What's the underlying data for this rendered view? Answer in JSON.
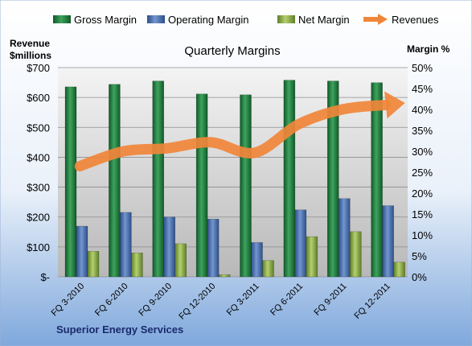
{
  "chart_data": {
    "type": "bar",
    "title": "Quarterly Margins",
    "company": "Superior Energy Services",
    "left_axis_label_line1": "Revenue",
    "left_axis_label_line2": "$millions",
    "right_axis_label": "Margin %",
    "categories": [
      "FQ 3-2010",
      "FQ 6-2010",
      "FQ 9-2010",
      "FQ 12-2010",
      "FQ 3-2011",
      "FQ 6-2011",
      "FQ 9-2011",
      "FQ 12-2011"
    ],
    "series": [
      {
        "name": "Gross Margin",
        "axis": "right",
        "color": "#1E7B3B",
        "values": [
          45.4,
          46.0,
          46.8,
          43.7,
          43.5,
          47.0,
          46.8,
          46.4
        ]
      },
      {
        "name": "Operating Margin",
        "axis": "right",
        "color": "#4A72B4",
        "values": [
          12.1,
          15.4,
          14.3,
          13.8,
          8.2,
          16.0,
          18.7,
          17.0
        ]
      },
      {
        "name": "Net Margin",
        "axis": "right",
        "color": "#8DB04A",
        "values": [
          6.1,
          5.7,
          7.9,
          0.5,
          3.9,
          9.6,
          10.8,
          3.5
        ]
      },
      {
        "name": "Revenues",
        "axis": "left",
        "color": "#F0863A",
        "values": [
          370,
          420,
          430,
          450,
          415,
          510,
          560,
          575
        ]
      }
    ],
    "left_axis": {
      "min": 0,
      "max": 700,
      "step": 100,
      "tick_labels": [
        "$-",
        "$100",
        "$200",
        "$300",
        "$400",
        "$500",
        "$600",
        "$700"
      ]
    },
    "right_axis": {
      "min": 0,
      "max": 50,
      "step": 5,
      "tick_labels": [
        "0%",
        "5%",
        "10%",
        "15%",
        "20%",
        "25%",
        "30%",
        "35%",
        "40%",
        "45%",
        "50%"
      ]
    },
    "legend_position": "top",
    "grid": true
  }
}
